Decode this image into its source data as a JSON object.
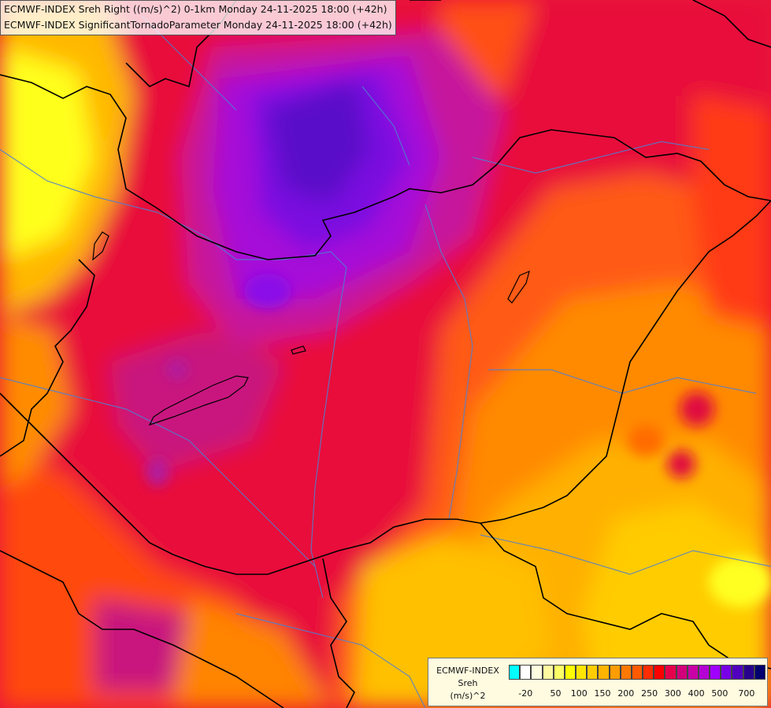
{
  "title": {
    "line1": "ECMWF-INDEX Sreh Right ((m/s)^2) 0-1km Monday 24-11-2025 18:00 (+42h)",
    "line2": "ECMWF-INDEX SignificantTornadoParameter Monday 24-11-2025 18:00 (+42h)"
  },
  "legend": {
    "line1": "ECMWF-INDEX",
    "line2": "Sreh",
    "line3": "(m/s)^2",
    "colors": [
      "#00ffff",
      "#ffffff",
      "#fffde0",
      "#fffaa0",
      "#ffff66",
      "#ffff00",
      "#ffe600",
      "#ffcc00",
      "#ffb400",
      "#ff9c00",
      "#ff7800",
      "#ff5a00",
      "#ff2d00",
      "#ff0000",
      "#e6004c",
      "#d2007a",
      "#c800a6",
      "#b400d2",
      "#a000ff",
      "#7800e6",
      "#5000be",
      "#28008c",
      "#00006e"
    ],
    "ticks": [
      "-20",
      "50",
      "100",
      "150",
      "200",
      "250",
      "300",
      "400",
      "500",
      "700"
    ]
  }
}
